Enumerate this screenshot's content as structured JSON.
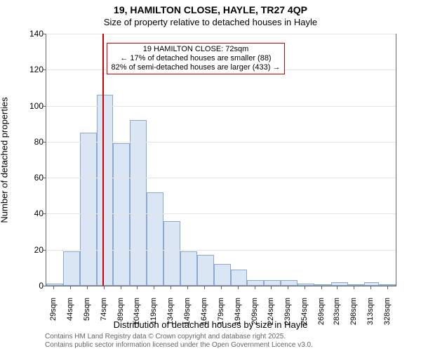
{
  "title_line1": "19, HAMILTON CLOSE, HAYLE, TR27 4QP",
  "title_line2": "Size of property relative to detached houses in Hayle",
  "ylabel": "Number of detached properties",
  "xlabel": "Distribution of detached houses by size in Hayle",
  "histogram": {
    "type": "bar",
    "xlim": [
      22,
      335
    ],
    "ylim": [
      0,
      140
    ],
    "ytick_step": 20,
    "bar_fill": "#dbe6f4",
    "bar_border": "#8ba8cf",
    "background": "#ffffff",
    "grid_color": "#e5e5e5",
    "bins": [
      {
        "start": 22,
        "end": 37,
        "count": 1
      },
      {
        "start": 37,
        "end": 52,
        "count": 19
      },
      {
        "start": 52,
        "end": 67,
        "count": 85
      },
      {
        "start": 67,
        "end": 82,
        "count": 106
      },
      {
        "start": 82,
        "end": 97,
        "count": 79
      },
      {
        "start": 97,
        "end": 112,
        "count": 92
      },
      {
        "start": 112,
        "end": 127,
        "count": 52
      },
      {
        "start": 127,
        "end": 142,
        "count": 36
      },
      {
        "start": 142,
        "end": 157,
        "count": 19
      },
      {
        "start": 157,
        "end": 172,
        "count": 17
      },
      {
        "start": 172,
        "end": 187,
        "count": 12
      },
      {
        "start": 187,
        "end": 202,
        "count": 9
      },
      {
        "start": 202,
        "end": 217,
        "count": 3
      },
      {
        "start": 217,
        "end": 232,
        "count": 3
      },
      {
        "start": 232,
        "end": 247,
        "count": 3
      },
      {
        "start": 247,
        "end": 262,
        "count": 1
      },
      {
        "start": 262,
        "end": 277,
        "count": 0
      },
      {
        "start": 277,
        "end": 292,
        "count": 2
      },
      {
        "start": 292,
        "end": 307,
        "count": 0
      },
      {
        "start": 307,
        "end": 320,
        "count": 2
      },
      {
        "start": 320,
        "end": 335,
        "count": 0
      }
    ],
    "xticks": [
      29,
      44,
      59,
      74,
      89,
      104,
      119,
      134,
      149,
      164,
      179,
      194,
      209,
      224,
      239,
      254,
      269,
      283,
      298,
      313,
      328
    ],
    "xtick_unit": "sqm",
    "tick_fontsize": 11
  },
  "marker": {
    "x": 72,
    "color": "#d00000"
  },
  "annotation": {
    "line1": "19 HAMILTON CLOSE: 72sqm",
    "line2": "← 17% of detached houses are smaller (88)",
    "line3": "82% of semi-detached houses are larger (433) →",
    "border_color": "#d00000",
    "fontsize": 11
  },
  "attribution": {
    "line1": "Contains HM Land Registry data © Crown copyright and database right 2025.",
    "line2": "Contains public sector information licensed under the Open Government Licence v3.0.",
    "color": "#666666",
    "fontsize": 10
  },
  "title_fontsize": 14,
  "subtitle_fontsize": 13,
  "axis_label_fontsize": 13
}
